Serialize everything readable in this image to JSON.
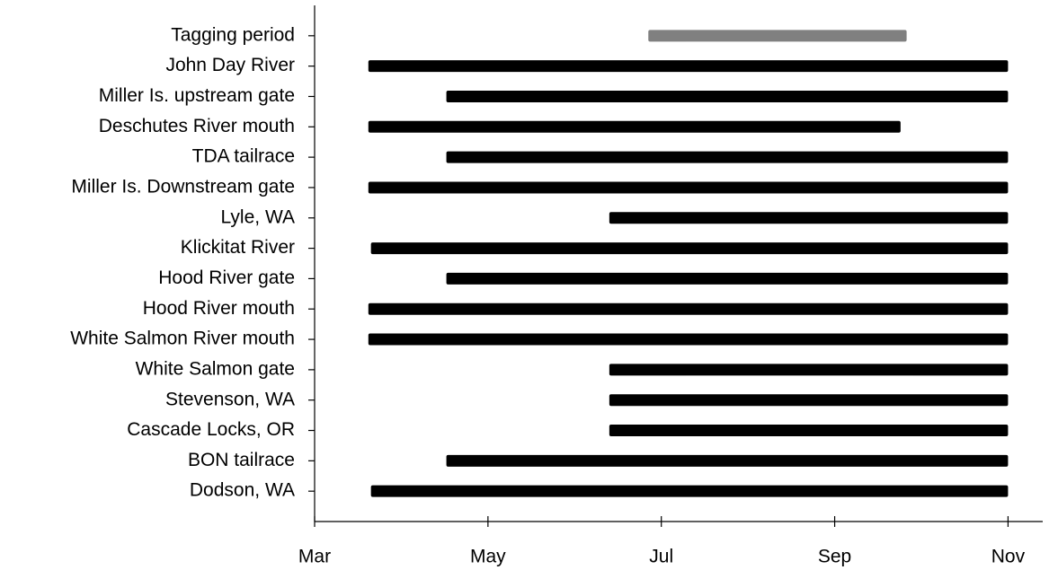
{
  "chart_data": {
    "type": "gantt",
    "categories": [
      "Tagging period",
      "John Day River",
      "Miller Is. upstream gate",
      "Deschutes River mouth",
      "TDA tailrace",
      "Miller Is. Downstream gate",
      "Lyle, WA",
      "Klickitat River",
      "Hood River gate",
      "Hood River mouth",
      "White Salmon River mouth",
      "White Salmon gate",
      "Stevenson, WA",
      "Cascade Locks, OR",
      "BON tailrace",
      "Dodson, WA"
    ],
    "start": [
      6.85,
      3.62,
      4.52,
      3.62,
      4.52,
      3.62,
      6.4,
      3.65,
      4.52,
      3.62,
      3.62,
      6.4,
      6.4,
      6.4,
      4.52,
      3.65
    ],
    "end": [
      9.83,
      11.0,
      11.0,
      9.76,
      11.0,
      11.0,
      11.0,
      11.0,
      11.0,
      11.0,
      11.0,
      11.0,
      11.0,
      11.0,
      11.0,
      11.0
    ],
    "colors": [
      "#808080",
      "#000000",
      "#000000",
      "#000000",
      "#000000",
      "#000000",
      "#000000",
      "#000000",
      "#000000",
      "#000000",
      "#000000",
      "#000000",
      "#000000",
      "#000000",
      "#000000",
      "#000000"
    ],
    "xlim": [
      3,
      11.4
    ],
    "xticks": [
      {
        "value": 3,
        "label": "Mar"
      },
      {
        "value": 5,
        "label": "May"
      },
      {
        "value": 7,
        "label": "Jul"
      },
      {
        "value": 9,
        "label": "Sep"
      },
      {
        "value": 11,
        "label": "Nov"
      }
    ]
  }
}
